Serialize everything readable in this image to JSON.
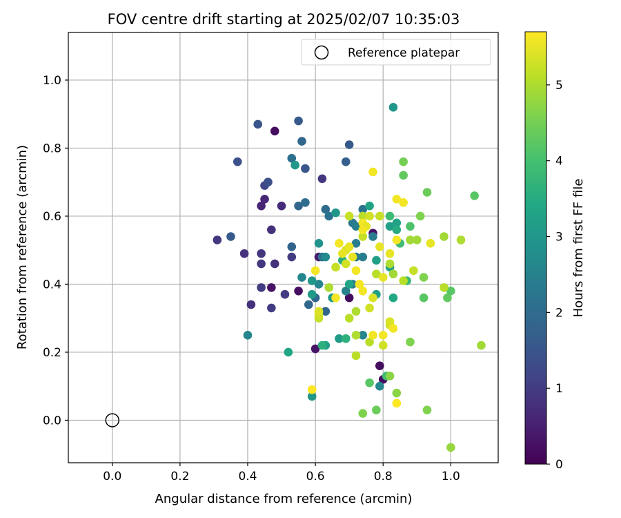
{
  "chart_data": {
    "type": "scatter",
    "title": "FOV centre drift starting at 2025/02/07 10:35:03",
    "xlabel": "Angular distance from reference (arcmin)",
    "ylabel": "Rotation from reference (arcmin)",
    "xlim": [
      -0.13,
      1.14
    ],
    "ylim": [
      -0.125,
      1.14
    ],
    "xticks": [
      0.0,
      0.2,
      0.4,
      0.6,
      0.8,
      1.0
    ],
    "yticks": [
      0.0,
      0.2,
      0.4,
      0.6,
      0.8,
      1.0
    ],
    "xtick_labels": [
      "0.0",
      "0.2",
      "0.4",
      "0.6",
      "0.8",
      "1.0"
    ],
    "ytick_labels": [
      "0.0",
      "0.2",
      "0.4",
      "0.6",
      "0.8",
      "1.0"
    ],
    "grid": true,
    "colormap": "viridis",
    "colorbar": {
      "label": "Hours from first FF file",
      "range": [
        0,
        5.7
      ],
      "ticks": [
        0,
        1,
        2,
        3,
        4,
        5
      ],
      "tick_labels": [
        "0",
        "1",
        "2",
        "3",
        "4",
        "5"
      ]
    },
    "legend": {
      "position": "top-right",
      "entries": [
        {
          "label": "Reference platepar",
          "marker": "open-circle"
        }
      ]
    },
    "reference_point": {
      "x": 0.0,
      "y": 0.0
    },
    "series": [
      {
        "marker": "filled-circle",
        "points": [
          [
            0.48,
            0.85,
            0.2
          ],
          [
            0.47,
            0.39,
            0.3
          ],
          [
            0.55,
            0.38,
            0.2
          ],
          [
            0.7,
            0.36,
            0.2
          ],
          [
            0.6,
            0.21,
            0.3
          ],
          [
            0.61,
            0.48,
            0.4
          ],
          [
            0.79,
            0.16,
            0.2
          ],
          [
            0.8,
            0.12,
            0.2
          ],
          [
            0.77,
            0.55,
            0.3
          ],
          [
            0.45,
            0.65,
            0.6
          ],
          [
            0.44,
            0.63,
            0.6
          ],
          [
            0.5,
            0.63,
            0.7
          ],
          [
            0.47,
            0.56,
            0.8
          ],
          [
            0.48,
            0.46,
            0.8
          ],
          [
            0.44,
            0.46,
            0.9
          ],
          [
            0.44,
            0.49,
            0.9
          ],
          [
            0.31,
            0.53,
            0.9
          ],
          [
            0.39,
            0.49,
            0.8
          ],
          [
            0.41,
            0.34,
            0.8
          ],
          [
            0.47,
            0.33,
            1.0
          ],
          [
            0.44,
            0.39,
            1.0
          ],
          [
            0.51,
            0.37,
            1.0
          ],
          [
            0.53,
            0.48,
            1.0
          ],
          [
            0.62,
            0.71,
            0.9
          ],
          [
            0.46,
            0.7,
            1.2
          ],
          [
            0.45,
            0.69,
            1.2
          ],
          [
            0.46,
            0.7,
            1.4
          ],
          [
            0.37,
            0.76,
            1.4
          ],
          [
            0.43,
            0.87,
            1.5
          ],
          [
            0.55,
            0.88,
            1.6
          ],
          [
            0.35,
            0.54,
            1.6
          ],
          [
            0.57,
            0.74,
            1.5
          ],
          [
            0.7,
            0.81,
            1.6
          ],
          [
            0.69,
            0.76,
            1.7
          ],
          [
            0.53,
            0.51,
            1.8
          ],
          [
            0.56,
            0.82,
            1.9
          ],
          [
            0.53,
            0.77,
            2.1
          ],
          [
            0.55,
            0.63,
            1.9
          ],
          [
            0.57,
            0.64,
            2.0
          ],
          [
            0.63,
            0.62,
            2.0
          ],
          [
            0.63,
            0.32,
            1.9
          ],
          [
            0.6,
            0.36,
            1.9
          ],
          [
            0.58,
            0.34,
            1.9
          ],
          [
            0.64,
            0.6,
            2.1
          ],
          [
            0.62,
            0.48,
            2.2
          ],
          [
            0.74,
            0.62,
            2.2
          ],
          [
            0.71,
            0.58,
            2.3
          ],
          [
            0.72,
            0.57,
            2.4
          ],
          [
            0.77,
            0.54,
            2.4
          ],
          [
            0.72,
            0.52,
            2.4
          ],
          [
            0.72,
            0.48,
            2.4
          ],
          [
            0.74,
            0.48,
            2.4
          ],
          [
            0.69,
            0.38,
            2.5
          ],
          [
            0.71,
            0.4,
            2.5
          ],
          [
            0.4,
            0.25,
            2.6
          ],
          [
            0.56,
            0.42,
            2.6
          ],
          [
            0.61,
            0.4,
            2.6
          ],
          [
            0.63,
            0.48,
            2.7
          ],
          [
            0.74,
            0.25,
            2.6
          ],
          [
            0.79,
            0.1,
            2.6
          ],
          [
            0.83,
            0.92,
            3.0
          ],
          [
            0.54,
            0.75,
            3.0
          ],
          [
            0.66,
            0.61,
            3.0
          ],
          [
            0.61,
            0.52,
            2.9
          ],
          [
            0.59,
            0.41,
            3.0
          ],
          [
            0.59,
            0.37,
            3.1
          ],
          [
            0.65,
            0.36,
            3.1
          ],
          [
            0.67,
            0.24,
            3.1
          ],
          [
            0.63,
            0.22,
            3.2
          ],
          [
            0.59,
            0.07,
            3.0
          ],
          [
            0.52,
            0.2,
            3.4
          ],
          [
            0.78,
            0.47,
            3.2
          ],
          [
            0.78,
            0.37,
            3.2
          ],
          [
            0.82,
            0.57,
            3.2
          ],
          [
            0.84,
            0.58,
            3.3
          ],
          [
            0.82,
            0.45,
            3.3
          ],
          [
            0.83,
            0.36,
            3.4
          ],
          [
            0.76,
            0.63,
            3.3
          ],
          [
            0.7,
            0.4,
            3.3
          ],
          [
            0.84,
            0.56,
            3.5
          ],
          [
            0.68,
            0.47,
            3.5
          ],
          [
            0.62,
            0.22,
            3.6
          ],
          [
            0.69,
            0.24,
            3.6
          ],
          [
            0.87,
            0.41,
            3.8
          ],
          [
            0.85,
            0.52,
            3.9
          ],
          [
            0.82,
            0.6,
            3.9
          ],
          [
            0.81,
            0.13,
            3.9
          ],
          [
            0.88,
            0.57,
            4.1
          ],
          [
            0.76,
            0.11,
            4.2
          ],
          [
            0.86,
            0.72,
            4.3
          ],
          [
            0.92,
            0.36,
            4.2
          ],
          [
            0.78,
            0.03,
            4.4
          ],
          [
            0.99,
            0.36,
            4.3
          ],
          [
            1.0,
            0.38,
            4.2
          ],
          [
            1.07,
            0.66,
            4.2
          ],
          [
            0.93,
            0.67,
            4.4
          ],
          [
            0.91,
            0.6,
            4.6
          ],
          [
            0.92,
            0.42,
            4.6
          ],
          [
            0.86,
            0.76,
            4.5
          ],
          [
            0.88,
            0.23,
            4.6
          ],
          [
            0.74,
            0.02,
            4.6
          ],
          [
            0.82,
            0.13,
            4.7
          ],
          [
            0.93,
            0.03,
            4.6
          ],
          [
            0.84,
            0.08,
            4.7
          ],
          [
            1.0,
            -0.08,
            4.8
          ],
          [
            1.09,
            0.22,
            4.9
          ],
          [
            0.98,
            0.54,
            4.9
          ],
          [
            1.03,
            0.53,
            5.0
          ],
          [
            0.88,
            0.53,
            4.9
          ],
          [
            0.9,
            0.53,
            4.9
          ],
          [
            0.82,
            0.46,
            5.0
          ],
          [
            0.83,
            0.43,
            4.9
          ],
          [
            0.86,
            0.41,
            5.1
          ],
          [
            0.78,
            0.43,
            5.1
          ],
          [
            0.79,
            0.6,
            5.2
          ],
          [
            0.74,
            0.6,
            5.1
          ],
          [
            0.7,
            0.6,
            5.2
          ],
          [
            0.76,
            0.6,
            5.3
          ],
          [
            0.64,
            0.39,
            5.0
          ],
          [
            0.66,
            0.45,
            5.2
          ],
          [
            0.69,
            0.46,
            5.3
          ],
          [
            0.7,
            0.3,
            5.1
          ],
          [
            0.72,
            0.32,
            5.0
          ],
          [
            0.72,
            0.25,
            5.0
          ],
          [
            0.72,
            0.19,
            5.1
          ],
          [
            0.76,
            0.23,
            5.1
          ],
          [
            0.74,
            0.54,
            5.2
          ],
          [
            0.8,
            0.22,
            5.3
          ],
          [
            0.98,
            0.39,
            5.1
          ],
          [
            0.61,
            0.3,
            5.2
          ],
          [
            0.61,
            0.31,
            5.3
          ],
          [
            0.61,
            0.32,
            5.4
          ],
          [
            0.76,
            0.33,
            5.3
          ],
          [
            0.82,
            0.28,
            5.3
          ],
          [
            0.82,
            0.29,
            5.4
          ],
          [
            0.77,
            0.36,
            5.4
          ],
          [
            0.69,
            0.5,
            5.4
          ],
          [
            0.7,
            0.51,
            5.5
          ],
          [
            0.68,
            0.49,
            5.5
          ],
          [
            0.67,
            0.52,
            5.6
          ],
          [
            0.71,
            0.48,
            5.5
          ],
          [
            0.74,
            0.58,
            5.6
          ],
          [
            0.75,
            0.57,
            5.5
          ],
          [
            0.74,
            0.56,
            5.6
          ],
          [
            0.79,
            0.51,
            5.5
          ],
          [
            0.82,
            0.49,
            5.5
          ],
          [
            0.84,
            0.53,
            5.6
          ],
          [
            0.86,
            0.64,
            5.6
          ],
          [
            0.94,
            0.52,
            5.5
          ],
          [
            0.8,
            0.42,
            5.5
          ],
          [
            0.72,
            0.44,
            5.6
          ],
          [
            0.74,
            0.38,
            5.6
          ],
          [
            0.73,
            0.4,
            5.6
          ],
          [
            0.77,
            0.25,
            5.6
          ],
          [
            0.8,
            0.25,
            5.6
          ],
          [
            0.83,
            0.27,
            5.6
          ],
          [
            0.59,
            0.09,
            5.7
          ],
          [
            0.6,
            0.44,
            5.6
          ],
          [
            0.84,
            0.65,
            5.6
          ],
          [
            0.84,
            0.05,
            5.7
          ],
          [
            0.77,
            0.73,
            5.6
          ],
          [
            0.66,
            0.36,
            5.6
          ],
          [
            0.89,
            0.44,
            5.2
          ]
        ]
      }
    ]
  }
}
